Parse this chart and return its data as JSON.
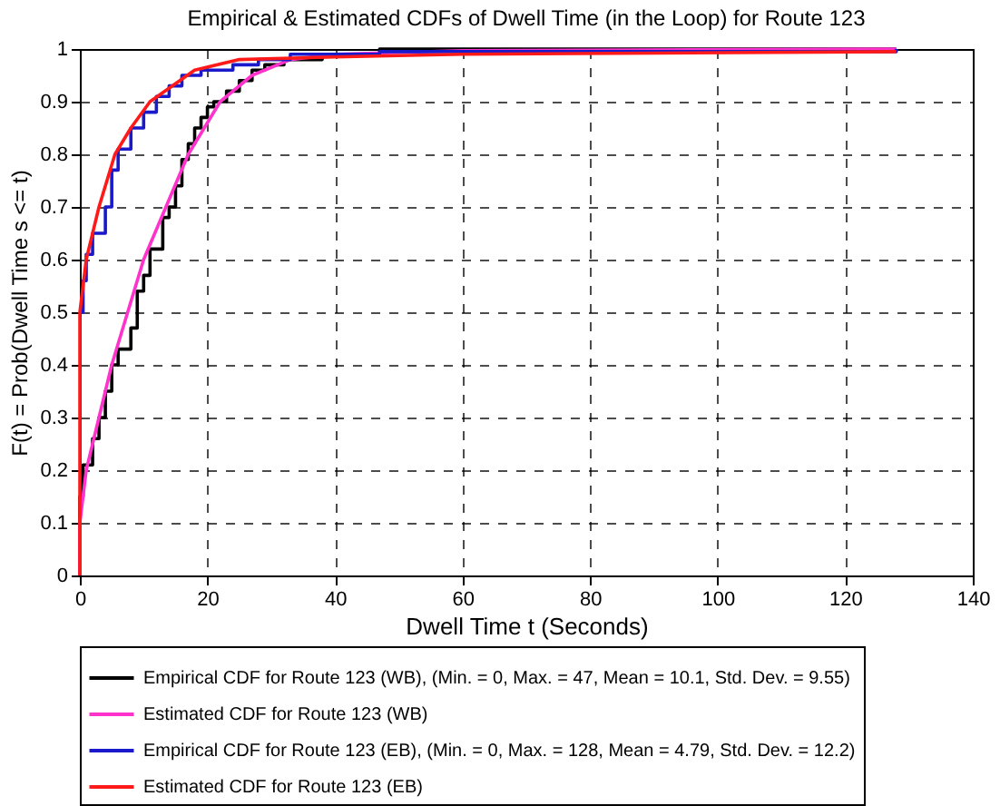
{
  "chart_data": {
    "type": "line",
    "title": "Empirical & Estimated CDFs of Dwell Time (in the Loop) for Route 123",
    "xlabel": "Dwell Time t (Seconds)",
    "ylabel": "F(t) = Prob(Dwell Time s <= t)",
    "xlim": [
      0,
      140
    ],
    "xticks": [
      0,
      20,
      40,
      60,
      80,
      100,
      120,
      140
    ],
    "ylim": [
      0,
      1
    ],
    "yticks": [
      0,
      0.1,
      0.2,
      0.3,
      0.4,
      0.5,
      0.6,
      0.7,
      0.8,
      0.9,
      1
    ],
    "grid": true,
    "legend": "bottom",
    "line_style": "solid",
    "marker": "none",
    "series": [
      {
        "name": "Empirical CDF for Route 123 (WB), (Min. = 0, Max. = 47, Mean = 10.1, Std. Dev. = 9.55)",
        "type": "step",
        "color": "#000000",
        "x": [
          0,
          0,
          0.5,
          2,
          3,
          4,
          5,
          6,
          8,
          9,
          10,
          11,
          13,
          14,
          15,
          16,
          17,
          18,
          19,
          20,
          21,
          23,
          25,
          27,
          29,
          32,
          38,
          47,
          128
        ],
        "values": [
          0,
          0.15,
          0.21,
          0.26,
          0.3,
          0.35,
          0.4,
          0.43,
          0.47,
          0.54,
          0.57,
          0.62,
          0.68,
          0.7,
          0.74,
          0.79,
          0.82,
          0.85,
          0.87,
          0.89,
          0.9,
          0.92,
          0.94,
          0.96,
          0.97,
          0.98,
          0.99,
          1,
          1
        ]
      },
      {
        "name": "Estimated CDF for Route 123 (WB)",
        "type": "line",
        "color": "#ff33cc",
        "x": [
          0,
          0,
          1,
          3,
          5,
          7.5,
          10,
          13.5,
          17,
          22,
          27,
          33,
          40,
          60,
          128
        ],
        "values": [
          0,
          0.1,
          0.2,
          0.3,
          0.4,
          0.5,
          0.6,
          0.7,
          0.8,
          0.9,
          0.95,
          0.98,
          0.99,
          0.997,
          1
        ]
      },
      {
        "name": "Empirical CDF for Route 123 (EB), (Min. = 0, Max. = 128, Mean = 4.79, Std. Dev. = 12.2)",
        "type": "step",
        "color": "#1a1acc",
        "x": [
          0,
          0.5,
          1,
          2,
          4,
          5,
          6,
          8,
          10,
          12,
          14,
          16,
          19,
          24,
          28,
          33,
          47,
          128
        ],
        "values": [
          0.5,
          0.56,
          0.61,
          0.65,
          0.7,
          0.77,
          0.81,
          0.85,
          0.88,
          0.91,
          0.93,
          0.95,
          0.96,
          0.97,
          0.98,
          0.99,
          0.995,
          1
        ]
      },
      {
        "name": "Estimated CDF for Route 123 (EB)",
        "type": "line",
        "color": "#ff1a1a",
        "x": [
          0,
          0,
          0.5,
          1,
          3,
          5.5,
          8,
          11,
          18,
          25,
          40,
          60,
          128
        ],
        "values": [
          0,
          0.5,
          0.55,
          0.6,
          0.7,
          0.8,
          0.85,
          0.9,
          0.96,
          0.98,
          0.985,
          0.99,
          0.995
        ]
      }
    ]
  }
}
